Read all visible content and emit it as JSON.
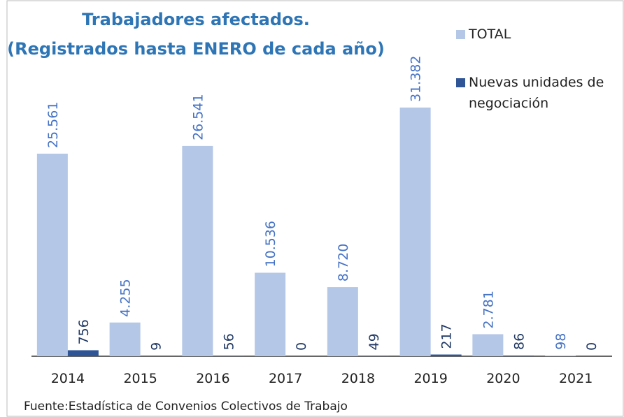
{
  "chart_data": {
    "type": "bar",
    "title": "Trabajadores afectados.",
    "subtitle": "(Registrados hasta ENERO de cada año)",
    "note": "Fuente:Estadística de Convenios Colectivos de Trabajo",
    "categories": [
      "2014",
      "2015",
      "2016",
      "2017",
      "2018",
      "2019",
      "2020",
      "2021"
    ],
    "series": [
      {
        "name": "TOTAL",
        "color": "#b4c7e7",
        "label_color": "#4472c4",
        "values": [
          25561,
          4255,
          26541,
          10536,
          8720,
          31382,
          2781,
          98
        ],
        "value_labels": [
          "25.561",
          "4.255",
          "26.541",
          "10.536",
          "8.720",
          "31.382",
          "2.781",
          "98"
        ]
      },
      {
        "name": "Nuevas unidades de negociación",
        "color": "#2f5597",
        "label_color": "#1f3864",
        "values": [
          756,
          9,
          56,
          0,
          49,
          217,
          86,
          0
        ]
      }
    ]
  }
}
